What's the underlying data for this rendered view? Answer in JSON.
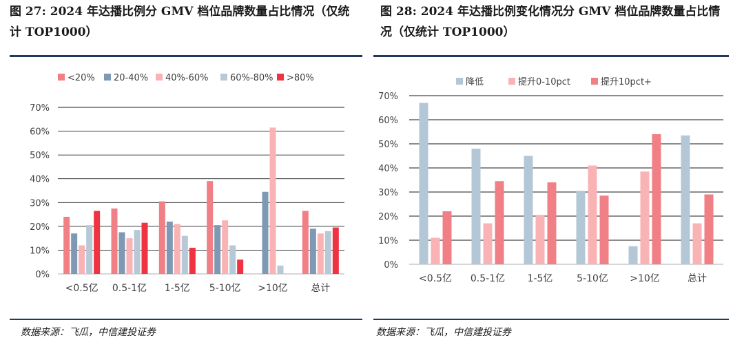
{
  "figures": [
    {
      "title": "图 27: 2024 年达播比例分 GMV 档位品牌数量占比情况（仅统计 TOP1000）",
      "source": "数据来源：飞瓜，中信建投证券"
    },
    {
      "title": "图 28: 2024 年达播比例变化情况分 GMV 档位品牌数量占比情况（仅统计 TOP1000）",
      "source": "数据来源：飞瓜，中信建投证券"
    }
  ],
  "chart_data": [
    {
      "type": "bar",
      "title": "2024 年达播比例分 GMV 档位品牌数量占比情况（仅统计 TOP1000）",
      "categories": [
        "<0.5亿",
        "0.5-1亿",
        "1-5亿",
        "5-10亿",
        ">10亿",
        "总计"
      ],
      "series": [
        {
          "name": "<20%",
          "color": "#f07f86",
          "values": [
            24,
            27.5,
            30.5,
            39,
            0,
            26.5
          ]
        },
        {
          "name": "20-40%",
          "color": "#7f98b3",
          "values": [
            17,
            17.5,
            22,
            20.5,
            34.5,
            19
          ]
        },
        {
          "name": "40%-60%",
          "color": "#f9b3b5",
          "values": [
            12,
            15,
            21,
            22.5,
            61.5,
            17
          ]
        },
        {
          "name": "60%-80%",
          "color": "#b7c9d6",
          "values": [
            20.5,
            18.5,
            16,
            12,
            3.5,
            18
          ]
        },
        {
          "name": ">80%",
          "color": "#ef3340",
          "values": [
            26.5,
            21.5,
            11,
            6,
            0,
            19.5
          ]
        }
      ],
      "ylim": [
        0,
        70
      ],
      "yticks": [
        "0%",
        "10%",
        "20%",
        "30%",
        "40%",
        "50%",
        "60%",
        "70%"
      ],
      "legend_position": "top",
      "grid": true
    },
    {
      "type": "bar",
      "title": "2024 年达播比例变化情况分 GMV 档位品牌数量占比情况（仅统计 TOP1000）",
      "categories": [
        "<0.5亿",
        "0.5-1亿",
        "1-5亿",
        "5-10亿",
        ">10亿",
        "总计"
      ],
      "series": [
        {
          "name": "降低",
          "color": "#b4c7d6",
          "values": [
            67,
            48,
            45,
            30.5,
            7.5,
            53.5
          ]
        },
        {
          "name": "提升0-10pct",
          "color": "#f9b3b5",
          "values": [
            11,
            17,
            20.5,
            41,
            38.5,
            17
          ]
        },
        {
          "name": "提升10pct+",
          "color": "#f07f86",
          "values": [
            22,
            34.5,
            34,
            28.5,
            54,
            29
          ]
        }
      ],
      "ylim": [
        0,
        70
      ],
      "yticks": [
        "0%",
        "10%",
        "20%",
        "30%",
        "40%",
        "50%",
        "60%",
        "70%"
      ],
      "legend_position": "top",
      "grid": true
    }
  ]
}
